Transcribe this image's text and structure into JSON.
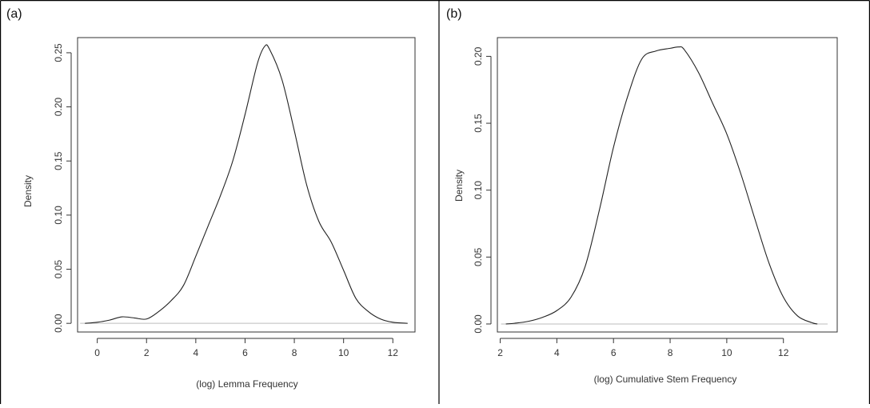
{
  "chart_data": [
    {
      "type": "line",
      "panel_label": "(a)",
      "xlabel": "(log) Lemma Frequency",
      "ylabel": "Density",
      "xlim": [
        -0.8,
        12.9
      ],
      "ylim": [
        -0.008,
        0.264
      ],
      "x_ticks": [
        0,
        2,
        4,
        6,
        8,
        10,
        12
      ],
      "y_ticks": [
        0.0,
        0.05,
        0.1,
        0.15,
        0.2,
        0.25
      ],
      "y_tick_labels": [
        "0.00",
        "0.05",
        "0.10",
        "0.15",
        "0.20",
        "0.25"
      ],
      "grid": false,
      "baseline": 0,
      "series": [
        {
          "x": [
            -0.5,
            0.0,
            0.5,
            1.0,
            1.5,
            2.0,
            2.5,
            3.0,
            3.5,
            4.0,
            4.5,
            5.0,
            5.5,
            6.0,
            6.5,
            6.8,
            7.0,
            7.5,
            8.0,
            8.5,
            9.0,
            9.5,
            10.0,
            10.5,
            11.0,
            11.5,
            12.0,
            12.6
          ],
          "y": [
            0.0,
            0.001,
            0.003,
            0.006,
            0.005,
            0.004,
            0.011,
            0.021,
            0.035,
            0.062,
            0.09,
            0.118,
            0.15,
            0.193,
            0.24,
            0.256,
            0.253,
            0.225,
            0.178,
            0.128,
            0.094,
            0.075,
            0.049,
            0.023,
            0.011,
            0.004,
            0.001,
            0.0
          ],
          "color": "#222222"
        }
      ]
    },
    {
      "type": "line",
      "panel_label": "(b)",
      "xlabel": "(log) Cumulative Stem Frequency",
      "ylabel": "Density",
      "xlim": [
        1.9,
        13.9
      ],
      "ylim": [
        -0.006,
        0.214
      ],
      "x_ticks": [
        2,
        4,
        6,
        8,
        10,
        12
      ],
      "y_ticks": [
        0.0,
        0.05,
        0.1,
        0.15,
        0.2
      ],
      "y_tick_labels": [
        "0.00",
        "0.05",
        "0.10",
        "0.15",
        "0.20"
      ],
      "grid": false,
      "baseline": 0,
      "series": [
        {
          "x": [
            2.2,
            2.5,
            3.0,
            3.5,
            4.0,
            4.5,
            5.0,
            5.5,
            6.0,
            6.5,
            7.0,
            7.5,
            8.0,
            8.3,
            8.5,
            9.0,
            9.5,
            10.0,
            10.5,
            11.0,
            11.5,
            12.0,
            12.5,
            13.0,
            13.2
          ],
          "y": [
            0.0,
            0.0005,
            0.002,
            0.005,
            0.01,
            0.02,
            0.043,
            0.085,
            0.132,
            0.17,
            0.198,
            0.204,
            0.206,
            0.207,
            0.205,
            0.188,
            0.165,
            0.142,
            0.112,
            0.078,
            0.045,
            0.02,
            0.006,
            0.001,
            0.0
          ],
          "color": "#222222"
        }
      ]
    }
  ]
}
